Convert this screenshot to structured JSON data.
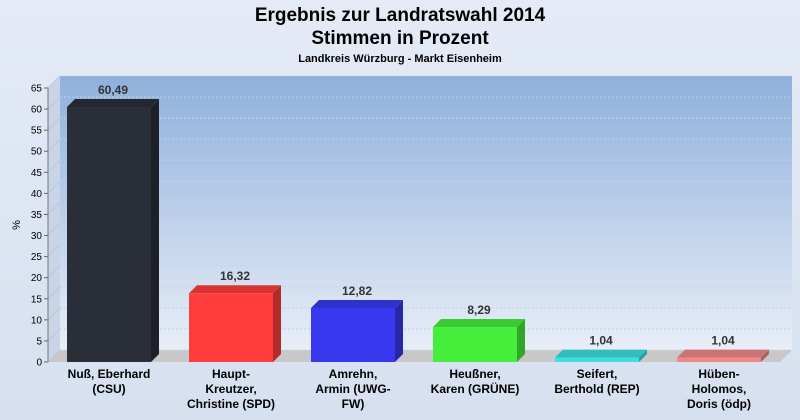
{
  "chart_data": {
    "type": "bar",
    "title": "Ergebnis zur Landratswahl 2014",
    "subtitle": "Stimmen in Prozent",
    "subsubtitle": "Landkreis Würzburg - Markt Eisenheim",
    "ylabel": "%",
    "ylim": [
      0,
      65
    ],
    "ytick_step": 5,
    "grid": true,
    "categories": [
      [
        "Nuß, Eberhard",
        "(CSU)"
      ],
      [
        "Haupt-",
        "Kreutzer,",
        "Christine (SPD)"
      ],
      [
        "Amrehn,",
        "Armin (UWG-",
        "FW)"
      ],
      [
        "Heußner,",
        "Karen (GRÜNE)"
      ],
      [
        "Seifert,",
        "Berthold (REP)"
      ],
      [
        "Hüben-",
        "Holomos,",
        "Doris (ödp)"
      ]
    ],
    "values": [
      60.49,
      16.32,
      12.82,
      8.29,
      1.04,
      1.04
    ],
    "value_labels": [
      "60,49",
      "16,32",
      "12,82",
      "8,29",
      "1,04",
      "1,04"
    ],
    "colors": [
      "#2a2e38",
      "#ff3d3d",
      "#3838ee",
      "#44ee3a",
      "#3ddede",
      "#f08888"
    ]
  }
}
